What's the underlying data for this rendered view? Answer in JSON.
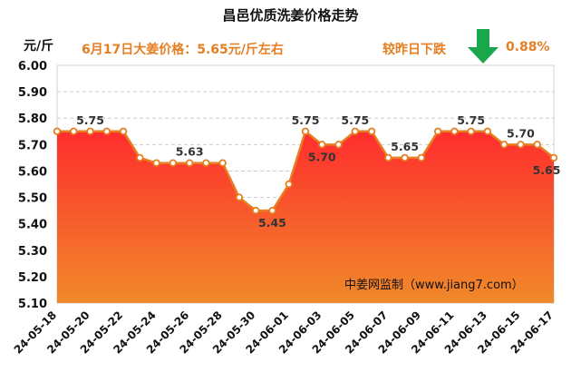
{
  "header": {
    "title": "昌邑优质洗姜价格走势",
    "unit": "元/斤",
    "price_note": "6月17日大姜价格：5.65元/斤左右",
    "change_label": "较昨日下跌",
    "change_pct": "0.88%",
    "watermark": "中姜网监制（www.jiang7.com）"
  },
  "icons": {
    "change_direction": "down-arrow-icon"
  },
  "colors": {
    "line": "#e67e22",
    "fill_top": "#ff2d2d",
    "fill_bottom": "#f08a2a",
    "grid": "#cccccc",
    "arrow": "#1aa64a",
    "note": "#e67e22"
  },
  "chart_data": {
    "type": "area",
    "title": "昌邑优质洗姜价格走势",
    "ylabel": "元/斤",
    "xlabel": "",
    "ylim": [
      5.1,
      6.0
    ],
    "yticks": [
      "6.00",
      "5.90",
      "5.80",
      "5.70",
      "5.60",
      "5.50",
      "5.40",
      "5.30",
      "5.20",
      "5.10"
    ],
    "xtick_labels": [
      "24-05-18",
      "24-05-20",
      "24-05-22",
      "24-05-24",
      "24-05-26",
      "24-05-28",
      "24-05-30",
      "24-06-01",
      "24-06-03",
      "24-06-05",
      "24-06-07",
      "24-06-09",
      "24-06-11",
      "24-06-13",
      "24-06-15",
      "24-06-17"
    ],
    "grid": true,
    "x": [
      "24-05-18",
      "24-05-19",
      "24-05-20",
      "24-05-21",
      "24-05-22",
      "24-05-23",
      "24-05-24",
      "24-05-25",
      "24-05-26",
      "24-05-27",
      "24-05-28",
      "24-05-29",
      "24-05-30",
      "24-05-31",
      "24-06-01",
      "24-06-02",
      "24-06-03",
      "24-06-04",
      "24-06-05",
      "24-06-06",
      "24-06-07",
      "24-06-08",
      "24-06-09",
      "24-06-10",
      "24-06-11",
      "24-06-12",
      "24-06-13",
      "24-06-14",
      "24-06-15",
      "24-06-16",
      "24-06-17"
    ],
    "values": [
      5.75,
      5.75,
      5.75,
      5.75,
      5.75,
      5.65,
      5.63,
      5.63,
      5.63,
      5.63,
      5.63,
      5.5,
      5.45,
      5.45,
      5.55,
      5.75,
      5.7,
      5.7,
      5.75,
      5.75,
      5.65,
      5.65,
      5.65,
      5.75,
      5.75,
      5.75,
      5.75,
      5.7,
      5.7,
      5.7,
      5.65
    ],
    "data_labels": [
      {
        "x": "24-05-20",
        "text": "5.75"
      },
      {
        "x": "24-05-26",
        "text": "5.63"
      },
      {
        "x": "24-05-31",
        "text": "5.45"
      },
      {
        "x": "24-06-02",
        "text": "5.75"
      },
      {
        "x": "24-06-03",
        "text": "5.70"
      },
      {
        "x": "24-06-05",
        "text": "5.75"
      },
      {
        "x": "24-06-08",
        "text": "5.65"
      },
      {
        "x": "24-06-12",
        "text": "5.75"
      },
      {
        "x": "24-06-15",
        "text": "5.70"
      },
      {
        "x": "24-06-17",
        "text": "5.65"
      }
    ]
  }
}
